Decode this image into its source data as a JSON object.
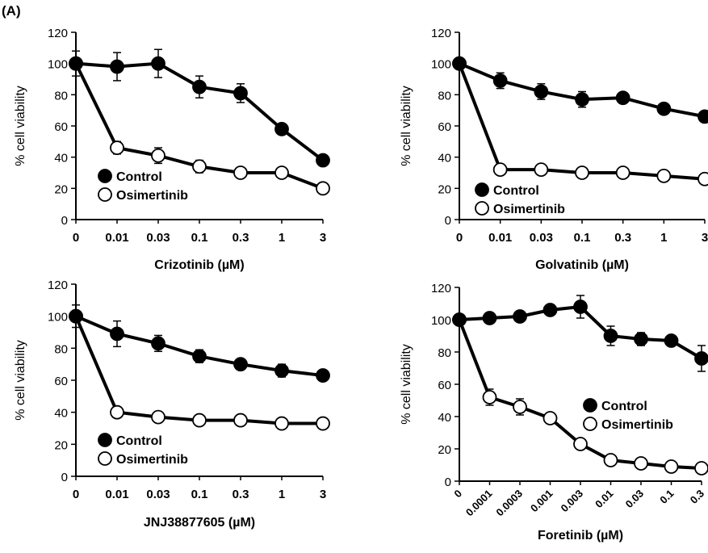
{
  "figure": {
    "panel_label": "(A)"
  },
  "chart_data": [
    {
      "type": "line",
      "xlabel": "Crizotinib (µM)",
      "ylabel": "% cell viability",
      "categories": [
        "0",
        "0.01",
        "0.03",
        "0.1",
        "0.3",
        "1",
        "3"
      ],
      "ylim": [
        0,
        120
      ],
      "yticks": [
        0,
        20,
        40,
        60,
        80,
        100,
        120
      ],
      "grid": false,
      "legend_position": "bottom-left",
      "series": [
        {
          "name": "Control",
          "marker": "filled",
          "values": [
            100,
            98,
            100,
            85,
            81,
            58,
            38
          ],
          "errors": [
            8,
            9,
            9,
            7,
            6,
            3,
            2
          ]
        },
        {
          "name": "Osimertinib",
          "marker": "open",
          "values": [
            100,
            46,
            41,
            34,
            30,
            30,
            20
          ],
          "errors": [
            2,
            4,
            5,
            4,
            2,
            2,
            2
          ]
        }
      ]
    },
    {
      "type": "line",
      "xlabel": "Golvatinib (µM)",
      "ylabel": "% cell viability",
      "categories": [
        "0",
        "0.01",
        "0.03",
        "0.1",
        "0.3",
        "1",
        "3"
      ],
      "ylim": [
        0,
        120
      ],
      "yticks": [
        0,
        20,
        40,
        60,
        80,
        100,
        120
      ],
      "grid": false,
      "legend_position": "bottom-left",
      "series": [
        {
          "name": "Control",
          "marker": "filled",
          "values": [
            100,
            89,
            82,
            77,
            78,
            71,
            66
          ],
          "errors": [
            2,
            5,
            5,
            5,
            3,
            2,
            2
          ]
        },
        {
          "name": "Osimertinib",
          "marker": "open",
          "values": [
            100,
            32,
            32,
            30,
            30,
            28,
            26
          ],
          "errors": [
            2,
            2,
            2,
            2,
            2,
            2,
            2
          ]
        }
      ]
    },
    {
      "type": "line",
      "xlabel": "JNJ38877605 (µM)",
      "ylabel": "% cell viability",
      "categories": [
        "0",
        "0.01",
        "0.03",
        "0.1",
        "0.3",
        "1",
        "3"
      ],
      "ylim": [
        0,
        120
      ],
      "yticks": [
        0,
        20,
        40,
        60,
        80,
        100,
        120
      ],
      "grid": false,
      "legend_position": "bottom-left",
      "series": [
        {
          "name": "Control",
          "marker": "filled",
          "values": [
            100,
            89,
            83,
            75,
            70,
            66,
            63
          ],
          "errors": [
            7,
            8,
            5,
            4,
            2,
            4,
            2
          ]
        },
        {
          "name": "Osimertinib",
          "marker": "open",
          "values": [
            100,
            40,
            37,
            35,
            35,
            33,
            33
          ],
          "errors": [
            2,
            2,
            2,
            2,
            2,
            2,
            2
          ]
        }
      ]
    },
    {
      "type": "line",
      "xlabel": "Foretinib (µM)",
      "ylabel": "% cell viability",
      "categories": [
        "0",
        "0.0001",
        "0.0003",
        "0.001",
        "0.003",
        "0.01",
        "0.03",
        "0.1",
        "0.3"
      ],
      "ylim": [
        0,
        120
      ],
      "yticks": [
        0,
        20,
        40,
        60,
        80,
        100,
        120
      ],
      "grid": false,
      "legend_position": "middle-right",
      "series": [
        {
          "name": "Control",
          "marker": "filled",
          "values": [
            100,
            101,
            102,
            106,
            108,
            90,
            88,
            87,
            76
          ],
          "errors": [
            2,
            2,
            2,
            2,
            7,
            6,
            4,
            2,
            8
          ]
        },
        {
          "name": "Osimertinib",
          "marker": "open",
          "values": [
            100,
            52,
            46,
            39,
            23,
            13,
            11,
            9,
            8
          ],
          "errors": [
            2,
            5,
            5,
            2,
            2,
            2,
            2,
            2,
            2
          ]
        }
      ]
    }
  ]
}
